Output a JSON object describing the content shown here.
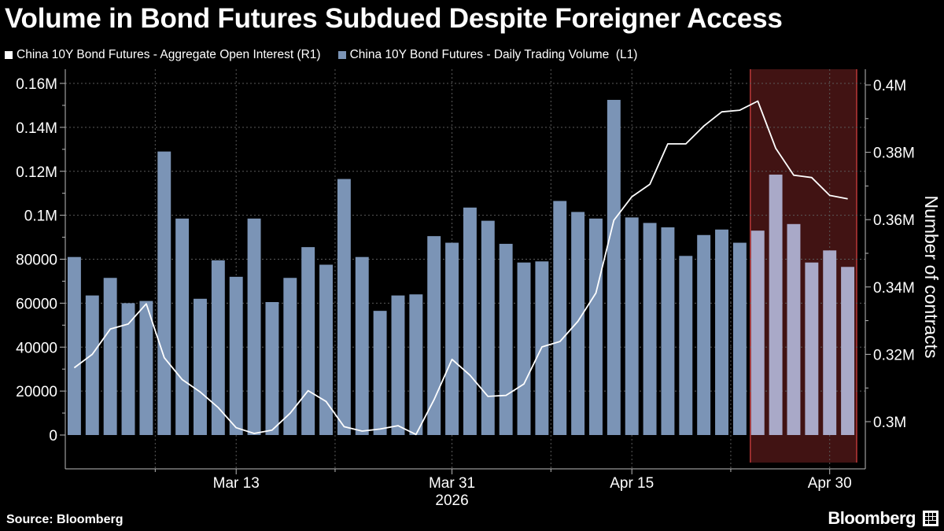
{
  "chart_data": {
    "type": "bar+line",
    "title": "Volume in Bond Futures Subdued Despite Foreigner Access",
    "legend_placement": "top-left",
    "grid": true,
    "x_labels": [
      {
        "label": "Mar 13",
        "index": 9
      },
      {
        "label": "Mar 31",
        "index": 21
      },
      {
        "label": "Apr 15",
        "index": 31
      },
      {
        "label": "Apr 30",
        "index": 42
      }
    ],
    "x_year_label": "2026",
    "y_left": {
      "range": [
        0,
        160000
      ],
      "ticks": [
        0,
        20000,
        40000,
        60000,
        80000,
        100000,
        120000,
        140000,
        160000
      ],
      "tick_labels": [
        "0",
        "20000",
        "40000",
        "60000",
        "80000",
        "0.1M",
        "0.12M",
        "0.14M",
        "0.16M"
      ]
    },
    "y_right": {
      "label": "Number of contracts",
      "range": [
        0.292,
        0.4
      ],
      "unit": "M",
      "ticks": [
        0.3,
        0.32,
        0.34,
        0.36,
        0.38,
        0.4
      ],
      "tick_labels": [
        "0.3M",
        "0.32M",
        "0.34M",
        "0.36M",
        "0.38M",
        "0.4M"
      ]
    },
    "highlight": {
      "start_index": 38,
      "end_index": 44,
      "color": "#c93c3c"
    },
    "series": [
      {
        "name": "China 10Y Bond Futures - Daily Trading Volume  (L1)",
        "type": "bar",
        "axis": "left",
        "color": "#7b94b6",
        "values": [
          81000,
          63500,
          71500,
          60000,
          61000,
          129000,
          98500,
          62000,
          79500,
          72000,
          98500,
          60500,
          71500,
          85500,
          77500,
          116500,
          81000,
          56500,
          63500,
          64000,
          90500,
          87500,
          103500,
          97500,
          87000,
          78500,
          79000,
          106500,
          101500,
          98500,
          152500,
          99000,
          96500,
          94500,
          81500,
          91000,
          93500,
          87500,
          93000,
          118500,
          96000,
          78500,
          84000,
          76500
        ]
      },
      {
        "name": "China 10Y Bond Futures - Aggregate Open Interest (R1)",
        "type": "line",
        "axis": "right",
        "color": "#ffffff",
        "values": [
          0.316,
          0.32,
          0.3275,
          0.329,
          0.335,
          0.319,
          0.3125,
          0.3088,
          0.3042,
          0.2982,
          0.2965,
          0.2975,
          0.3025,
          0.3092,
          0.306,
          0.2985,
          0.2972,
          0.2978,
          0.2988,
          0.2962,
          0.3065,
          0.3185,
          0.3138,
          0.3075,
          0.3078,
          0.3112,
          0.3222,
          0.3238,
          0.3298,
          0.3382,
          0.3598,
          0.3668,
          0.3705,
          0.3825,
          0.3825,
          0.3878,
          0.392,
          0.3925,
          0.3952,
          0.3812,
          0.3732,
          0.3725,
          0.3672,
          0.3662
        ]
      }
    ]
  },
  "footer": {
    "source": "Source: Bloomberg",
    "brand": "Bloomberg"
  }
}
